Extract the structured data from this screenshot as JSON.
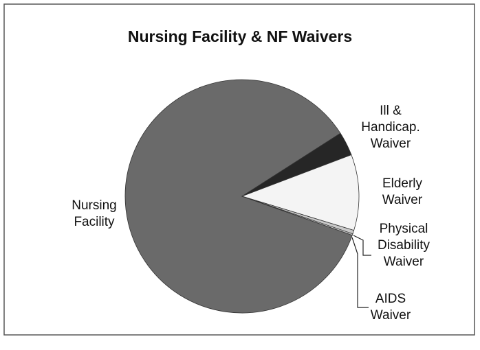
{
  "chart_data": {
    "type": "pie",
    "title": "Nursing Facility & NF Waivers",
    "categories": [
      "Nursing Facility",
      "Ill & Handicap. Waiver",
      "Elderly Waiver",
      "Physical Disability Waiver",
      "AIDS Waiver"
    ],
    "values": [
      85.5,
      3.3,
      10.5,
      0.5,
      0.2
    ],
    "colors": [
      "#6a6a6a",
      "#262626",
      "#f4f4f4",
      "#c8c8c8",
      "#c8c8c8"
    ]
  }
}
